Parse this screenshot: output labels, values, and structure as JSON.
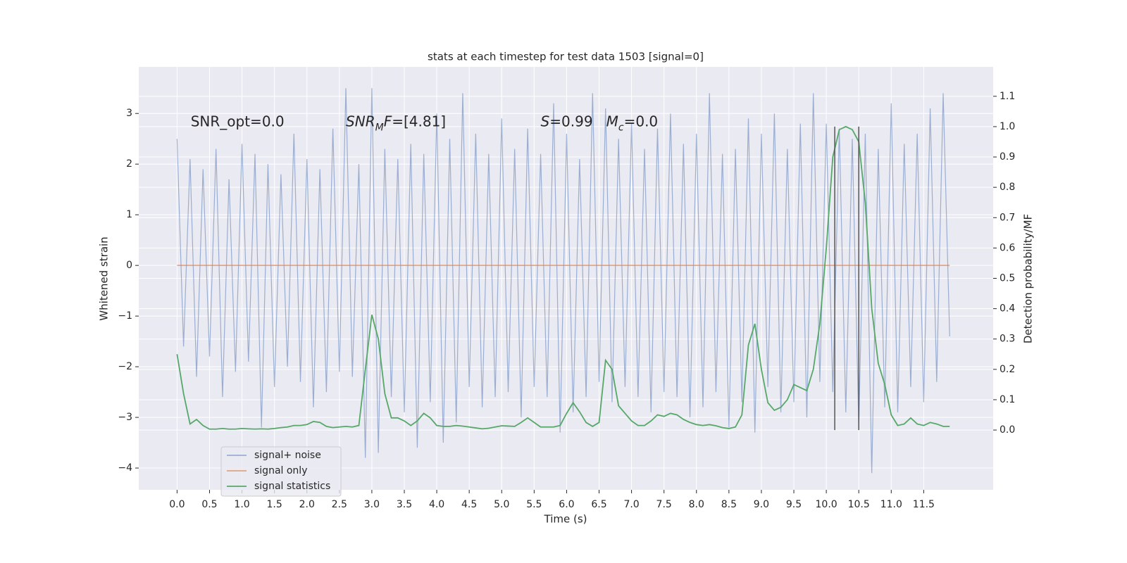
{
  "chart_data": {
    "type": "line",
    "title": "stats at each timestep for test data 1503 [signal=0]",
    "xlabel": "Time (s)",
    "ylabel": "Whitened strain",
    "y2label": "Detection probability/MF",
    "xlim": [
      -0.59,
      12.57
    ],
    "ylim": [
      -4.43,
      3.92
    ],
    "y2lim": [
      -0.197,
      1.197
    ],
    "xticks": [
      {
        "value": 0,
        "label": "0.0"
      },
      0.5,
      {
        "value": 1,
        "label": "1.0"
      },
      1.5,
      {
        "value": 2,
        "label": "2.0"
      },
      2.5,
      {
        "value": 3,
        "label": "3.0"
      },
      3.5,
      {
        "value": 4,
        "label": "4.0"
      },
      4.5,
      {
        "value": 5,
        "label": "5.0"
      },
      5.5,
      {
        "value": 6,
        "label": "6.0"
      },
      6.5,
      {
        "value": 7,
        "label": "7.0"
      },
      7.5,
      {
        "value": 8,
        "label": "8.0"
      },
      8.5,
      {
        "value": 9,
        "label": "9.0"
      },
      9.5,
      {
        "value": 10,
        "label": "10.0"
      },
      10.5,
      {
        "value": 11,
        "label": "11.0"
      },
      11.5
    ],
    "yticks": [
      {
        "value": -4,
        "label": "−4"
      },
      {
        "value": -3,
        "label": "−3"
      },
      {
        "value": -2,
        "label": "−2"
      },
      {
        "value": -1,
        "label": "−1"
      },
      0,
      1,
      2,
      3
    ],
    "y2ticks": [
      {
        "value": 0,
        "label": "0.0"
      },
      0.1,
      0.2,
      0.3,
      0.4,
      0.5,
      0.6,
      0.7,
      0.8,
      0.9,
      {
        "value": 1,
        "label": "1.0"
      },
      1.1
    ],
    "grid": true,
    "legend": "lower left",
    "x": [
      0,
      0.1,
      0.2,
      0.3,
      0.4,
      0.5,
      0.6,
      0.7,
      0.8,
      0.9,
      1,
      1.1,
      1.2,
      1.3,
      1.4,
      1.5,
      1.6,
      1.7,
      1.8,
      1.9,
      2,
      2.1,
      2.2,
      2.3,
      2.4,
      2.5,
      2.6,
      2.7,
      2.8,
      2.9,
      3,
      3.1,
      3.2,
      3.3,
      3.4,
      3.5,
      3.6,
      3.7,
      3.8,
      3.9,
      4,
      4.1,
      4.2,
      4.3,
      4.4,
      4.5,
      4.6,
      4.7,
      4.8,
      4.9,
      5,
      5.1,
      5.2,
      5.3,
      5.4,
      5.5,
      5.6,
      5.7,
      5.8,
      5.9,
      6,
      6.1,
      6.2,
      6.3,
      6.4,
      6.5,
      6.6,
      6.7,
      6.8,
      6.9,
      7,
      7.1,
      7.2,
      7.3,
      7.4,
      7.5,
      7.6,
      7.7,
      7.8,
      7.9,
      8,
      8.1,
      8.2,
      8.3,
      8.4,
      8.5,
      8.6,
      8.7,
      8.8,
      8.9,
      9,
      9.1,
      9.2,
      9.3,
      9.4,
      9.5,
      9.6,
      9.7,
      9.8,
      9.9,
      10,
      10.1,
      10.2,
      10.3,
      10.4,
      10.5,
      10.6,
      10.7,
      10.8,
      10.9,
      11,
      11.1,
      11.2,
      11.3,
      11.4,
      11.5,
      11.6,
      11.7,
      11.8,
      11.9
    ],
    "series": [
      {
        "name": "signal+ noise",
        "color": "#4c72b0",
        "opacity": 0.5,
        "values": [
          2.5,
          -1.6,
          2.1,
          -2.2,
          1.9,
          -1.8,
          2.3,
          -2.6,
          1.7,
          -2.1,
          2.4,
          -1.9,
          2.2,
          -3.2,
          2.0,
          -2.4,
          1.8,
          -2.0,
          2.6,
          -2.3,
          2.1,
          -2.8,
          1.9,
          -2.5,
          2.7,
          -2.1,
          3.5,
          -2.2,
          2.0,
          -3.8,
          3.5,
          -3.7,
          2.3,
          -2.6,
          2.1,
          -2.9,
          2.4,
          -3.6,
          2.2,
          -2.7,
          3.0,
          -3.5,
          2.5,
          -3.1,
          3.4,
          -2.4,
          2.6,
          -2.8,
          2.2,
          -2.6,
          2.9,
          -2.5,
          2.3,
          -3.0,
          2.7,
          -2.4,
          2.2,
          -2.6,
          3.2,
          -3.3,
          2.6,
          -2.9,
          2.1,
          -2.6,
          3.4,
          -2.3,
          3.1,
          -2.7,
          2.5,
          -2.4,
          2.8,
          -2.6,
          2.3,
          -2.9,
          2.7,
          -2.5,
          3.0,
          -2.6,
          2.4,
          -3.0,
          2.6,
          -2.8,
          3.4,
          -2.5,
          2.2,
          -3.2,
          2.3,
          -2.7,
          2.9,
          -3.3,
          2.6,
          -2.4,
          3.0,
          -2.9,
          2.3,
          -2.7,
          2.8,
          -3.0,
          3.4,
          -2.3,
          2.8,
          -2.5,
          2.7,
          -2.9,
          2.5,
          -3.2,
          2.6,
          -4.1,
          2.3,
          -2.8,
          3.2,
          -2.9,
          2.4,
          -2.4,
          2.6,
          -2.7,
          3.1,
          -2.3,
          3.4,
          -1.4
        ]
      },
      {
        "name": "signal only",
        "color": "#dd8452",
        "opacity": 0.7,
        "values": [
          0,
          0,
          0,
          0,
          0,
          0,
          0,
          0,
          0,
          0,
          0,
          0,
          0,
          0,
          0,
          0,
          0,
          0,
          0,
          0,
          0,
          0,
          0,
          0,
          0,
          0,
          0,
          0,
          0,
          0,
          0,
          0,
          0,
          0,
          0,
          0,
          0,
          0,
          0,
          0,
          0,
          0,
          0,
          0,
          0,
          0,
          0,
          0,
          0,
          0,
          0,
          0,
          0,
          0,
          0,
          0,
          0,
          0,
          0,
          0,
          0,
          0,
          0,
          0,
          0,
          0,
          0,
          0,
          0,
          0,
          0,
          0,
          0,
          0,
          0,
          0,
          0,
          0,
          0,
          0,
          0,
          0,
          0,
          0,
          0,
          0,
          0,
          0,
          0,
          0,
          0,
          0,
          0,
          0,
          0,
          0,
          0,
          0,
          0,
          0,
          0,
          0,
          0,
          0,
          0,
          0,
          0,
          0,
          0,
          0,
          0,
          0,
          0,
          0,
          0,
          0,
          0,
          0,
          0,
          0
        ]
      },
      {
        "name": "signal statistics",
        "color": "#55a868",
        "opacity": 1,
        "axis": "y2",
        "values": [
          0.25,
          0.12,
          0.02,
          0.035,
          0.015,
          0.003,
          0.003,
          0.005,
          0.003,
          0.003,
          0.005,
          0.004,
          0.003,
          0.004,
          0.003,
          0.005,
          0.008,
          0.01,
          0.015,
          0.015,
          0.018,
          0.028,
          0.025,
          0.012,
          0.008,
          0.01,
          0.012,
          0.01,
          0.015,
          0.2,
          0.38,
          0.3,
          0.12,
          0.04,
          0.04,
          0.03,
          0.015,
          0.03,
          0.055,
          0.04,
          0.015,
          0.012,
          0.012,
          0.015,
          0.013,
          0.01,
          0.007,
          0.004,
          0.006,
          0.01,
          0.014,
          0.013,
          0.012,
          0.025,
          0.04,
          0.025,
          0.01,
          0.01,
          0.01,
          0.015,
          0.055,
          0.09,
          0.06,
          0.025,
          0.012,
          0.025,
          0.23,
          0.2,
          0.08,
          0.055,
          0.03,
          0.015,
          0.015,
          0.03,
          0.05,
          0.045,
          0.055,
          0.05,
          0.035,
          0.025,
          0.018,
          0.015,
          0.018,
          0.014,
          0.008,
          0.005,
          0.01,
          0.05,
          0.28,
          0.35,
          0.2,
          0.09,
          0.065,
          0.075,
          0.1,
          0.15,
          0.14,
          0.13,
          0.2,
          0.35,
          0.6,
          0.9,
          0.99,
          1.0,
          0.99,
          0.95,
          0.75,
          0.4,
          0.22,
          0.15,
          0.05,
          0.015,
          0.02,
          0.04,
          0.02,
          0.015,
          0.025,
          0.02,
          0.012,
          0.012
        ]
      }
    ],
    "vlines": {
      "x": [
        10.13,
        10.5
      ],
      "y2": [
        0,
        1
      ],
      "color": "#555555"
    },
    "annotations": [
      {
        "x": 0.21,
        "y": 2.83,
        "parts": [
          "SNR_opt=0.0"
        ]
      },
      {
        "x": 2.6,
        "y": 2.83,
        "parts": [
          {
            "text": "SNR",
            "italic": true
          },
          {
            "text": "M",
            "italic": true,
            "sub": true
          },
          {
            "text": "F",
            "italic": true
          },
          "=[4.81]"
        ]
      },
      {
        "x": 5.6,
        "y": 2.83,
        "parts": [
          {
            "text": "S",
            "italic": true
          },
          "=0.99   ",
          {
            "text": "M",
            "italic": true
          },
          {
            "text": "c",
            "italic": true,
            "sub": true
          },
          "=0.0"
        ]
      }
    ]
  }
}
